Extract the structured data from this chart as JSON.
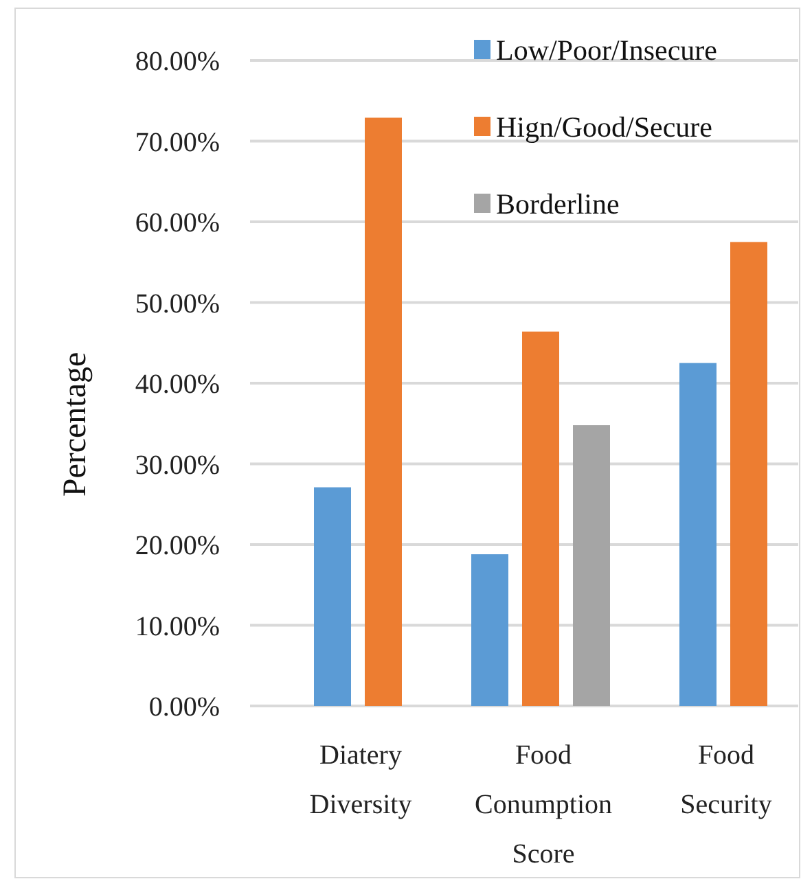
{
  "chart_data": {
    "type": "bar",
    "ylabel": "Percentage",
    "categories": [
      "Diatery Diversity",
      "Food Conumption Score",
      "Food Security"
    ],
    "series": [
      {
        "name": "Low/Poor/Insecure",
        "color": "#5b9bd5",
        "values": [
          27.1,
          18.8,
          42.5
        ]
      },
      {
        "name": "Hign/Good/Secure",
        "color": "#ed7d31",
        "values": [
          72.9,
          46.4,
          57.5
        ]
      },
      {
        "name": "Borderline",
        "color": "#a5a5a5",
        "values": [
          null,
          34.8,
          null
        ]
      }
    ],
    "ylim": [
      0,
      80
    ],
    "yticks": [
      {
        "value": 0,
        "label": "0.00%"
      },
      {
        "value": 10,
        "label": "10.00%"
      },
      {
        "value": 20,
        "label": "20.00%"
      },
      {
        "value": 30,
        "label": "30.00%"
      },
      {
        "value": 40,
        "label": "40.00%"
      },
      {
        "value": 50,
        "label": "50.00%"
      },
      {
        "value": 60,
        "label": "60.00%"
      },
      {
        "value": 70,
        "label": "70.00%"
      },
      {
        "value": 80,
        "label": "80.00%"
      }
    ],
    "grid": "y",
    "legend": "top right"
  }
}
